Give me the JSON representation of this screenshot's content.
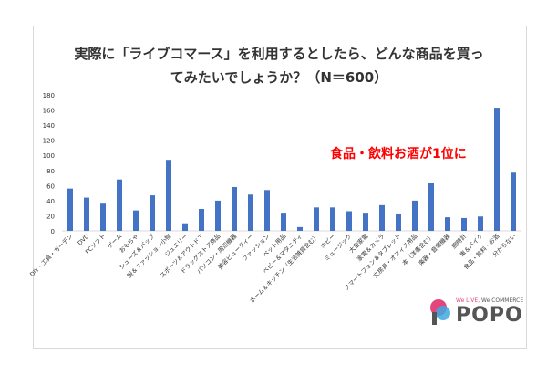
{
  "chart_data": {
    "type": "bar",
    "title_lines": [
      "実際に「ライブコマース」を利用するとしたら、どんな商品を買っ",
      "てみたいでしょうか？（N＝600）"
    ],
    "categories": [
      "DIY・工具・ガーデン",
      "DVD",
      "PCソフト",
      "ゲーム",
      "おもちゃ",
      "シューズ＆バッグ",
      "服＆ファッション小物",
      "ジュエリー",
      "スポーツ＆アウトドア",
      "ドラッグストア商品",
      "パソコン・周辺機器",
      "美容ビューティー",
      "ファッション",
      "ペット用品",
      "ベビー＆マタニティ",
      "ホーム＆キッチン（生活雑貨含む）",
      "ホビー",
      "ミュージック",
      "大型家電",
      "家電＆カメラ",
      "スマートフォン＆タブレット",
      "文房具・オフィス用品",
      "本（洋書含む）",
      "楽器・音響機器",
      "腕時計",
      "車＆バイク",
      "食品・飲料・お酒",
      "分からない"
    ],
    "values": [
      56,
      44,
      36,
      68,
      27,
      47,
      94,
      10,
      29,
      40,
      58,
      48,
      54,
      24,
      5,
      31,
      31,
      26,
      24,
      34,
      23,
      40,
      64,
      18,
      17,
      19,
      163,
      77
    ],
    "ylim": [
      0,
      180
    ],
    "yticks": [
      0,
      20,
      40,
      60,
      80,
      100,
      120,
      140,
      160,
      180
    ],
    "grid": false,
    "bar_color": "#4472c4",
    "annotation": "食品・飲料お酒が1位に",
    "annotation_color": "#ff0000"
  },
  "logo": {
    "tagline_accent": "We LIVE,",
    "tagline_rest": " We COMMERCE",
    "wordmark": "POPO",
    "colors": {
      "pink": "#e2467d",
      "blue": "#3fa9e0",
      "gray": "#555555"
    }
  }
}
